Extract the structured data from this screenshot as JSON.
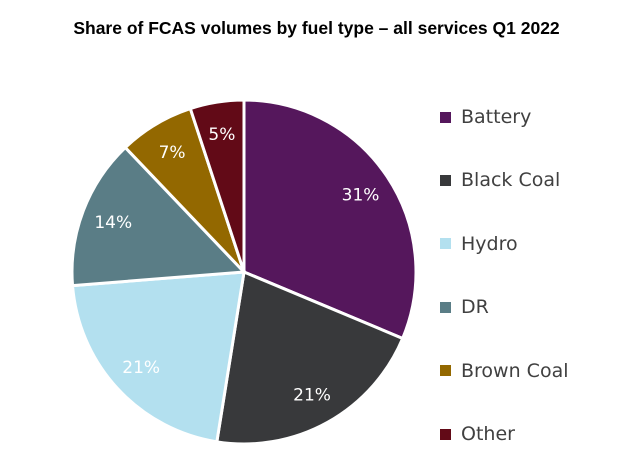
{
  "chart_data": {
    "type": "pie",
    "title": "Share of FCAS volumes by fuel type – all services Q1 2022",
    "categories": [
      "Battery",
      "Black Coal",
      "Hydro",
      "DR",
      "Brown Coal",
      "Other"
    ],
    "values": [
      31,
      21,
      21,
      14,
      7,
      5
    ],
    "labels": [
      "31%",
      "21%",
      "21%",
      "14%",
      "7%",
      "5%"
    ],
    "colors": [
      "#55175c",
      "#38393b",
      "#b3e0ef",
      "#5a7d86",
      "#936800",
      "#620a17"
    ],
    "start": "12 o'clock, clockwise",
    "legend_position": "right"
  }
}
